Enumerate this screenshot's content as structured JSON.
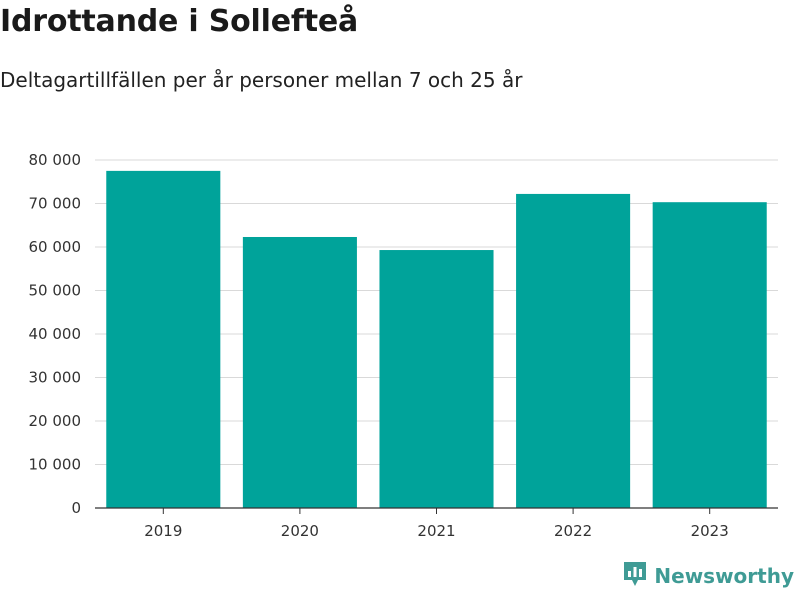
{
  "header": {
    "title": "Idrottande i Sollefteå",
    "subtitle": "Deltagartillfällen per år personer mellan 7 och 25 år"
  },
  "brand": {
    "name": "Newsworthy",
    "icon": "newsworthy-logo-icon",
    "color": "#3f9b95"
  },
  "colors": {
    "bar": "#00a39a",
    "grid": "#d9d9d9",
    "axis": "#333333"
  },
  "chart_data": {
    "type": "bar",
    "categories": [
      "2019",
      "2020",
      "2021",
      "2022",
      "2023"
    ],
    "values": [
      77500,
      62300,
      59300,
      72200,
      70300
    ],
    "yticks": [
      0,
      10000,
      20000,
      30000,
      40000,
      50000,
      60000,
      70000,
      80000
    ],
    "ytick_labels": [
      "0",
      "10 000",
      "20 000",
      "30 000",
      "40 000",
      "50 000",
      "60 000",
      "70 000",
      "80 000"
    ],
    "ylim": [
      0,
      80000
    ],
    "title": "Idrottande i Sollefteå",
    "subtitle": "Deltagartillfällen per år personer mellan 7 och 25 år",
    "xlabel": "",
    "ylabel": "",
    "grid": true
  }
}
